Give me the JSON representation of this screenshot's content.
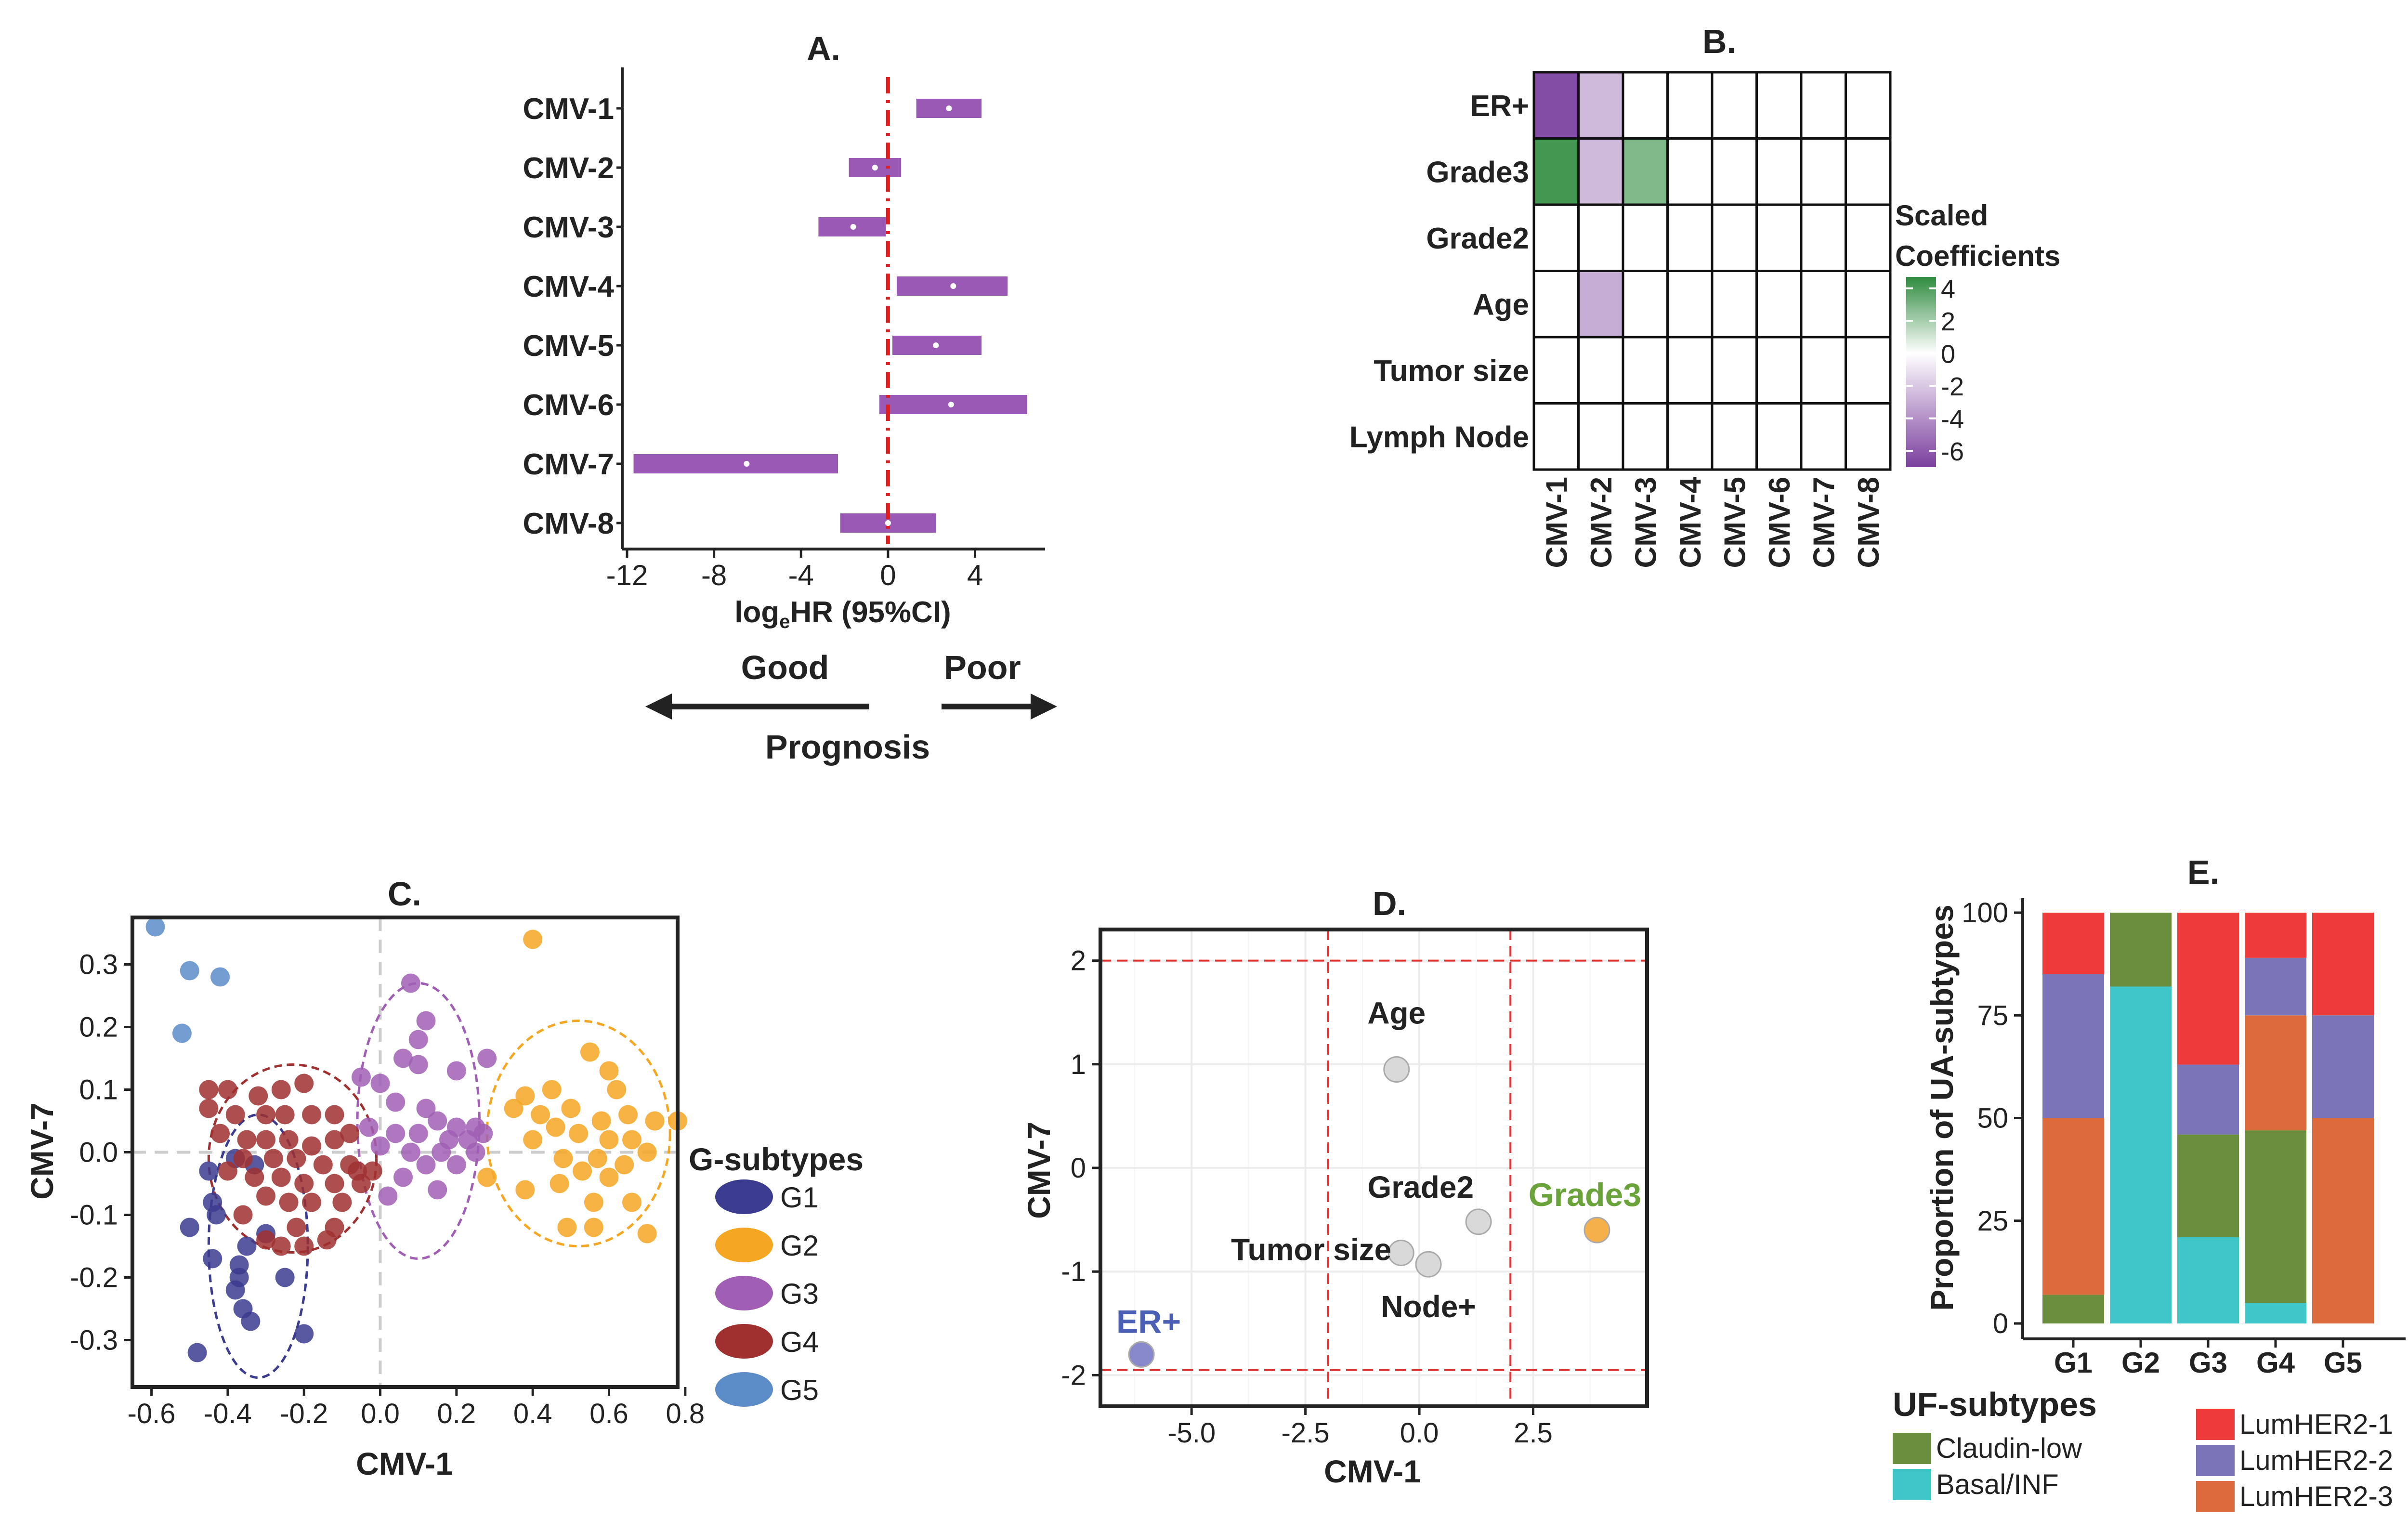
{
  "chart_data": [
    {
      "panel": "A.",
      "type": "forest",
      "title": "A.",
      "xlabel_main": "log",
      "xlabel_sub": "e",
      "xlabel_rest": "HR (95%CI)",
      "xlim": [
        -12,
        7
      ],
      "xticks": [
        -12,
        -8,
        -4,
        0,
        4
      ],
      "reference_line": 0,
      "rows": [
        {
          "label": "CMV-1",
          "est": 2.8,
          "lo": 1.3,
          "hi": 4.3
        },
        {
          "label": "CMV-2",
          "est": -0.6,
          "lo": -1.8,
          "hi": 0.6
        },
        {
          "label": "CMV-3",
          "est": -1.6,
          "lo": -3.2,
          "hi": -0.1
        },
        {
          "label": "CMV-4",
          "est": 3.0,
          "lo": 0.4,
          "hi": 5.5
        },
        {
          "label": "CMV-5",
          "est": 2.2,
          "lo": 0.2,
          "hi": 4.3
        },
        {
          "label": "CMV-6",
          "est": 2.9,
          "lo": -0.4,
          "hi": 6.4
        },
        {
          "label": "CMV-7",
          "est": -6.5,
          "lo": -11.7,
          "hi": -2.3
        },
        {
          "label": "CMV-8",
          "est": 0.0,
          "lo": -2.2,
          "hi": 2.2
        }
      ],
      "prognosis": {
        "good": "Good",
        "poor": "Poor",
        "label": "Prognosis"
      },
      "bar_color": "#9b59b6"
    },
    {
      "panel": "B.",
      "type": "heatmap",
      "title": "B.",
      "rows": [
        "ER+",
        "Grade3",
        "Grade2",
        "Age",
        "Tumor size",
        "Lymph Node"
      ],
      "cols": [
        "CMV-1",
        "CMV-2",
        "CMV-3",
        "CMV-4",
        "CMV-5",
        "CMV-6",
        "CMV-7",
        "CMV-8"
      ],
      "values": [
        [
          -6.5,
          -2.5,
          0,
          0,
          0,
          0,
          0,
          0
        ],
        [
          4.5,
          -2.5,
          3.0,
          0,
          0,
          0,
          0,
          0
        ],
        [
          0,
          0,
          0,
          0,
          0,
          0,
          0,
          0
        ],
        [
          0,
          -3.0,
          0,
          0,
          0,
          0,
          0,
          0
        ],
        [
          0,
          0,
          0,
          0,
          0,
          0,
          0,
          0
        ],
        [
          0,
          0,
          0,
          0,
          0,
          0,
          0,
          0
        ]
      ],
      "legend_title_1": "Scaled",
      "legend_title_2": "Coefficients",
      "legend_ticks": [
        4,
        2,
        0,
        -2,
        -4,
        -6
      ],
      "scale": {
        "min": -7,
        "max": 5,
        "low_color": "#7b3f9e",
        "mid_color": "#ffffff",
        "high_color": "#2e8b3e"
      }
    },
    {
      "panel": "C.",
      "type": "scatter",
      "title": "C.",
      "xlabel": "CMV-1",
      "ylabel": "CMV-7",
      "xlim": [
        -0.65,
        0.78
      ],
      "ylim": [
        -0.375,
        0.375
      ],
      "xticks": [
        -0.6,
        -0.4,
        -0.2,
        0.0,
        0.2,
        0.4,
        0.6,
        0.8
      ],
      "xtick_labels": [
        "-0.6",
        "-0.4",
        "-0.2",
        "0.0",
        "0.2",
        "0.4",
        "0.6",
        "0.8"
      ],
      "yticks": [
        0.3,
        0.2,
        0.1,
        0.0,
        -0.1,
        -0.2,
        -0.3
      ],
      "ytick_labels": [
        "0.3",
        "0.2",
        "0.1",
        "0.0",
        "-0.1",
        "-0.2",
        "-0.3"
      ],
      "legend_title": "G-subtypes",
      "series": [
        {
          "name": "G1",
          "color": "#3b3b8f",
          "points": [
            [
              -0.45,
              -0.03
            ],
            [
              -0.38,
              -0.01
            ],
            [
              -0.33,
              -0.02
            ],
            [
              -0.43,
              -0.1
            ],
            [
              -0.5,
              -0.12
            ],
            [
              -0.35,
              -0.15
            ],
            [
              -0.3,
              -0.13
            ],
            [
              -0.44,
              -0.17
            ],
            [
              -0.37,
              -0.18
            ],
            [
              -0.37,
              -0.2
            ],
            [
              -0.38,
              -0.22
            ],
            [
              -0.36,
              -0.25
            ],
            [
              -0.34,
              -0.27
            ],
            [
              -0.48,
              -0.32
            ],
            [
              -0.2,
              -0.29
            ],
            [
              -0.25,
              -0.2
            ],
            [
              -0.44,
              -0.08
            ]
          ],
          "ellipse": {
            "cx": -0.32,
            "cy": -0.15,
            "rx": 0.13,
            "ry": 0.21
          }
        },
        {
          "name": "G2",
          "color": "#f5a623",
          "points": [
            [
              0.4,
              0.34
            ],
            [
              0.55,
              0.16
            ],
            [
              0.6,
              0.13
            ],
            [
              0.78,
              0.05
            ],
            [
              0.38,
              0.09
            ],
            [
              0.45,
              0.1
            ],
            [
              0.5,
              0.07
            ],
            [
              0.42,
              0.06
            ],
            [
              0.58,
              0.05
            ],
            [
              0.65,
              0.06
            ],
            [
              0.72,
              0.05
            ],
            [
              0.4,
              0.02
            ],
            [
              0.46,
              0.04
            ],
            [
              0.52,
              0.03
            ],
            [
              0.6,
              0.02
            ],
            [
              0.66,
              0.02
            ],
            [
              0.48,
              -0.01
            ],
            [
              0.57,
              -0.01
            ],
            [
              0.64,
              -0.02
            ],
            [
              0.7,
              0.0
            ],
            [
              0.53,
              -0.03
            ],
            [
              0.6,
              -0.04
            ],
            [
              0.47,
              -0.05
            ],
            [
              0.38,
              -0.06
            ],
            [
              0.56,
              -0.08
            ],
            [
              0.66,
              -0.08
            ],
            [
              0.49,
              -0.12
            ],
            [
              0.56,
              -0.12
            ],
            [
              0.7,
              -0.13
            ],
            [
              0.28,
              -0.04
            ],
            [
              0.35,
              0.07
            ],
            [
              0.62,
              0.1
            ]
          ],
          "ellipse": {
            "cx": 0.52,
            "cy": 0.03,
            "rx": 0.24,
            "ry": 0.18
          }
        },
        {
          "name": "G3",
          "color": "#a05fb4",
          "points": [
            [
              0.08,
              0.27
            ],
            [
              0.12,
              0.21
            ],
            [
              0.1,
              0.18
            ],
            [
              0.06,
              0.15
            ],
            [
              0.1,
              0.14
            ],
            [
              0.2,
              0.13
            ],
            [
              0.28,
              0.15
            ],
            [
              -0.05,
              0.12
            ],
            [
              0.0,
              0.11
            ],
            [
              0.04,
              0.08
            ],
            [
              0.12,
              0.07
            ],
            [
              0.15,
              0.05
            ],
            [
              0.2,
              0.04
            ],
            [
              0.25,
              0.04
            ],
            [
              -0.03,
              0.04
            ],
            [
              0.04,
              0.03
            ],
            [
              0.1,
              0.03
            ],
            [
              0.18,
              0.02
            ],
            [
              0.23,
              0.02
            ],
            [
              0.27,
              0.03
            ],
            [
              0.0,
              0.01
            ],
            [
              0.08,
              0.0
            ],
            [
              0.16,
              0.0
            ],
            [
              0.25,
              0.0
            ],
            [
              0.12,
              -0.02
            ],
            [
              0.2,
              -0.02
            ],
            [
              0.06,
              -0.04
            ],
            [
              0.02,
              -0.07
            ],
            [
              0.15,
              -0.06
            ]
          ],
          "ellipse": {
            "cx": 0.1,
            "cy": 0.05,
            "rx": 0.16,
            "ry": 0.22
          }
        },
        {
          "name": "G4",
          "color": "#a03030",
          "points": [
            [
              -0.45,
              0.1
            ],
            [
              -0.4,
              0.1
            ],
            [
              -0.32,
              0.09
            ],
            [
              -0.26,
              0.1
            ],
            [
              -0.2,
              0.11
            ],
            [
              -0.45,
              0.07
            ],
            [
              -0.38,
              0.06
            ],
            [
              -0.3,
              0.06
            ],
            [
              -0.25,
              0.06
            ],
            [
              -0.18,
              0.06
            ],
            [
              -0.12,
              0.06
            ],
            [
              -0.08,
              0.03
            ],
            [
              -0.42,
              0.03
            ],
            [
              -0.35,
              0.02
            ],
            [
              -0.3,
              0.02
            ],
            [
              -0.24,
              0.02
            ],
            [
              -0.18,
              0.01
            ],
            [
              -0.12,
              0.02
            ],
            [
              -0.36,
              -0.01
            ],
            [
              -0.28,
              -0.01
            ],
            [
              -0.22,
              -0.01
            ],
            [
              -0.15,
              -0.02
            ],
            [
              -0.08,
              -0.02
            ],
            [
              -0.02,
              -0.03
            ],
            [
              -0.4,
              -0.03
            ],
            [
              -0.33,
              -0.04
            ],
            [
              -0.26,
              -0.04
            ],
            [
              -0.2,
              -0.05
            ],
            [
              -0.12,
              -0.05
            ],
            [
              -0.05,
              -0.05
            ],
            [
              -0.3,
              -0.07
            ],
            [
              -0.24,
              -0.08
            ],
            [
              -0.18,
              -0.08
            ],
            [
              -0.1,
              -0.08
            ],
            [
              -0.36,
              -0.1
            ],
            [
              -0.22,
              -0.12
            ],
            [
              -0.14,
              -0.14
            ],
            [
              -0.3,
              -0.14
            ],
            [
              -0.26,
              -0.15
            ],
            [
              -0.2,
              -0.15
            ],
            [
              -0.12,
              -0.12
            ],
            [
              -0.06,
              -0.03
            ]
          ],
          "ellipse": {
            "cx": -0.23,
            "cy": -0.01,
            "rx": 0.22,
            "ry": 0.15
          }
        },
        {
          "name": "G5",
          "color": "#5b8cc8",
          "points": [
            [
              -0.59,
              0.36
            ],
            [
              -0.5,
              0.29
            ],
            [
              -0.42,
              0.28
            ],
            [
              -0.52,
              0.19
            ]
          ],
          "ellipse": null
        }
      ]
    },
    {
      "panel": "D.",
      "type": "scatter",
      "title": "D.",
      "xlabel": "CMV-1",
      "ylabel": "CMV-7",
      "xlim": [
        -7.0,
        5.0
      ],
      "ylim": [
        -2.3,
        2.3
      ],
      "xticks": [
        -5.0,
        -2.5,
        0.0,
        2.5
      ],
      "xtick_labels": [
        "-5.0",
        "-2.5",
        "0.0",
        "2.5"
      ],
      "yticks": [
        2,
        1,
        0,
        -1,
        -2
      ],
      "ytick_labels": [
        "2",
        "1",
        "0",
        "-1",
        "-2"
      ],
      "thresholds": {
        "x": [
          -2,
          2
        ],
        "y": [
          -1.95,
          2
        ]
      },
      "points": [
        {
          "label": "ER+",
          "x": -6.1,
          "y": -1.8,
          "color": "#8888cc",
          "text_color": "#4b5fb5"
        },
        {
          "label": "Age",
          "x": -0.5,
          "y": 0.95,
          "color": "#d9d9d9",
          "text_color": "#222222"
        },
        {
          "label": "Grade2",
          "x": 1.3,
          "y": -0.52,
          "color": "#d9d9d9",
          "text_color": "#222222"
        },
        {
          "label": "Tumor size",
          "x": -0.4,
          "y": -0.82,
          "color": "#d9d9d9",
          "text_color": "#222222"
        },
        {
          "label": "Node+",
          "x": 0.2,
          "y": -0.93,
          "color": "#d9d9d9",
          "text_color": "#222222"
        },
        {
          "label": "Grade3",
          "x": 3.9,
          "y": -0.6,
          "color": "#f5b04a",
          "text_color": "#6aa33a"
        }
      ]
    },
    {
      "panel": "E.",
      "type": "stacked_bar",
      "title": "E.",
      "ylabel": "Proportion of UA-subtypes",
      "categories": [
        "G1",
        "G2",
        "G3",
        "G4",
        "G5"
      ],
      "yticks": [
        0,
        25,
        50,
        75,
        100
      ],
      "ylim": [
        0,
        100
      ],
      "series": [
        {
          "name": "Basal/INF",
          "color": "#3ec6c9",
          "values": [
            0,
            82,
            21,
            5,
            0
          ]
        },
        {
          "name": "Claudin-low",
          "color": "#6b8e3e",
          "values": [
            7,
            18,
            25,
            42,
            0
          ]
        },
        {
          "name": "LumHER2-3",
          "color": "#dd6a3a",
          "values": [
            43,
            0,
            0,
            28,
            50
          ]
        },
        {
          "name": "LumHER2-2",
          "color": "#7a74b8",
          "values": [
            35,
            0,
            17,
            14,
            25
          ]
        },
        {
          "name": "LumHER2-1",
          "color": "#ee3a3a",
          "values": [
            15,
            0,
            37,
            11,
            25
          ]
        }
      ],
      "legend_left_title": "UF-subtypes",
      "legend_left": [
        "Claudin-low",
        "Basal/INF"
      ],
      "legend_right": [
        "LumHER2-1",
        "LumHER2-2",
        "LumHER2-3"
      ]
    }
  ]
}
